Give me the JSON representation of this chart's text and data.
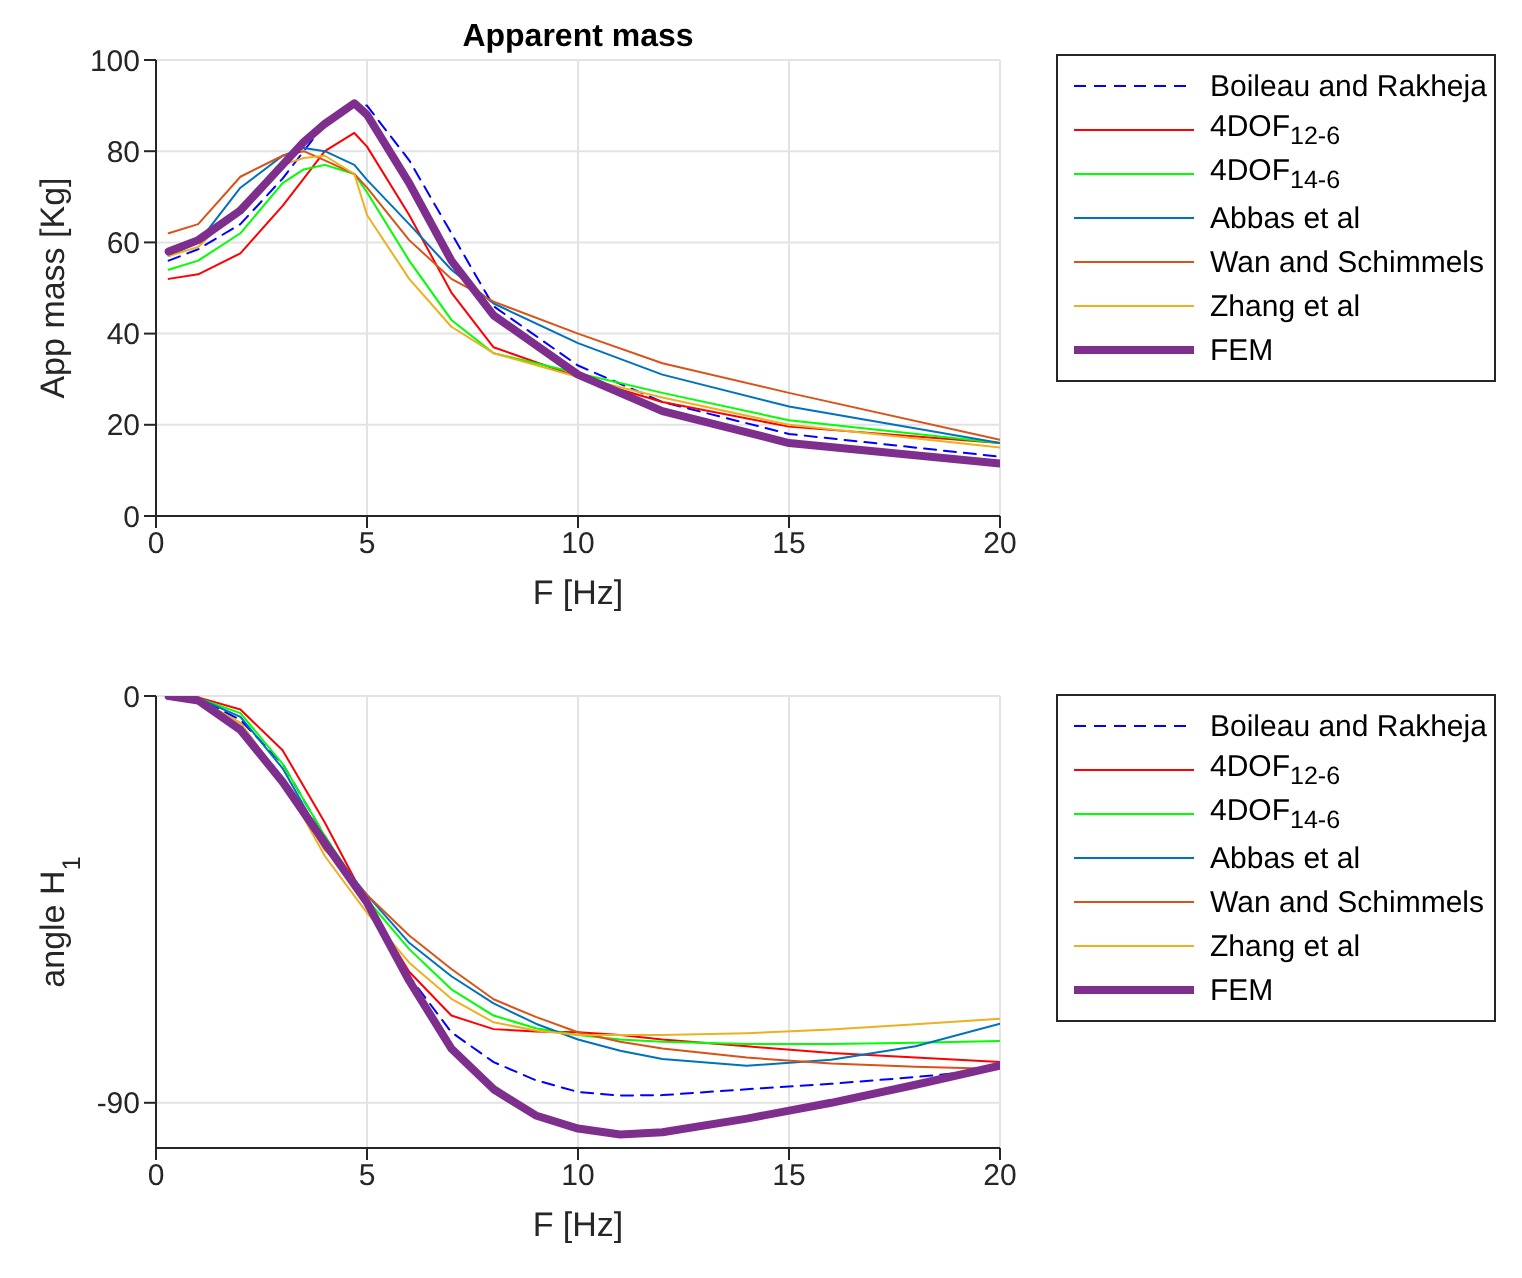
{
  "chart_data": [
    {
      "type": "line",
      "title": "Apparent mass",
      "xlabel": "F [Hz]",
      "ylabel": "App mass [Kg]",
      "xlim": [
        0,
        20
      ],
      "xticks": [
        0,
        5,
        10,
        15,
        20
      ],
      "ylim": [
        0,
        100
      ],
      "yticks": [
        0,
        20,
        40,
        60,
        80,
        100
      ],
      "grid": true,
      "legend": "right",
      "x": [
        0.3,
        1,
        2,
        3,
        3.5,
        4,
        4.7,
        5,
        6,
        7,
        8,
        10,
        12,
        15,
        20
      ],
      "series": [
        {
          "name": "Boileau and Rakheja",
          "color": "#0000ff",
          "line_style": "dashed",
          "values": [
            56,
            58.5,
            64,
            74,
            80,
            86,
            90.5,
            90,
            78,
            62,
            46,
            33,
            25,
            18,
            13
          ]
        },
        {
          "name": "4DOF$_{12-6}$",
          "color": "#ff0000",
          "values": [
            52,
            53,
            57.6,
            68,
            74,
            80,
            84,
            81,
            66,
            49,
            37,
            30.5,
            25,
            19.6,
            16
          ]
        },
        {
          "name": "4DOF$_{14-6}$",
          "color": "#00ff00",
          "values": [
            54,
            56,
            62,
            73,
            76,
            77,
            75,
            71,
            56,
            43,
            35.7,
            31.3,
            27,
            21,
            16
          ]
        },
        {
          "name": "Abbas et al",
          "color": "#0072bd",
          "values": [
            57,
            60,
            72,
            79,
            80.7,
            80,
            77,
            73.7,
            64,
            54,
            46.6,
            37.9,
            31,
            24,
            16
          ]
        },
        {
          "name": "Wan and Schimmels",
          "color": "#d95319",
          "values": [
            62,
            64,
            74.4,
            79,
            80,
            78,
            75,
            72,
            60.5,
            52,
            47,
            40,
            33.5,
            27,
            16.7
          ]
        },
        {
          "name": "Zhang et al",
          "color": "#edb120",
          "values": [
            57,
            59,
            68,
            77,
            78.5,
            79,
            75,
            66,
            52,
            41.5,
            35.7,
            30.5,
            26,
            20,
            15
          ]
        },
        {
          "name": "FEM",
          "color": "#7e2f8e",
          "values": [
            58,
            60.5,
            67,
            77,
            82,
            86,
            90.5,
            88,
            73,
            56,
            44,
            31,
            23,
            16,
            11.5
          ]
        }
      ]
    },
    {
      "type": "line",
      "xlabel": "F [Hz]",
      "ylabel": "angle H$_{1}$",
      "xlim": [
        0,
        20
      ],
      "xticks": [
        0,
        5,
        10,
        15,
        20
      ],
      "ylim": [
        -100,
        0
      ],
      "yticks": [
        -90,
        0
      ],
      "grid": true,
      "legend": "right",
      "x": [
        0.3,
        1,
        2,
        3,
        4,
        5,
        6,
        7,
        8,
        9,
        10,
        11,
        12,
        14,
        16,
        18,
        20
      ],
      "series": [
        {
          "name": "Boileau and Rakheja",
          "color": "#0000ff",
          "line_style": "dashed",
          "values": [
            0,
            -0.5,
            -5.3,
            -15,
            -31,
            -45.7,
            -62,
            -74.4,
            -81,
            -85,
            -87.6,
            -88.4,
            -88.3,
            -87,
            -85.8,
            -84.3,
            -82.5
          ]
        },
        {
          "name": "4DOF$_{12-6}$",
          "color": "#ff0000",
          "values": [
            0,
            -0.3,
            -3,
            -12,
            -28,
            -45.7,
            -61,
            -70.7,
            -73.7,
            -74.2,
            -74.4,
            -75,
            -76,
            -77.5,
            -79,
            -80,
            -81
          ]
        },
        {
          "name": "4DOF$_{14-6}$",
          "color": "#00ff00",
          "values": [
            0,
            -0.5,
            -3.8,
            -15,
            -31,
            -45,
            -56,
            -64.9,
            -70.7,
            -73.5,
            -75,
            -76,
            -76.5,
            -77,
            -77,
            -76.7,
            -76.3
          ]
        },
        {
          "name": "Abbas et al",
          "color": "#0072bd",
          "values": [
            0,
            -0.5,
            -4.6,
            -16,
            -32.5,
            -44,
            -54.6,
            -62,
            -68,
            -72.5,
            -76,
            -78.5,
            -80.3,
            -81.8,
            -80.5,
            -77.5,
            -72.5
          ]
        },
        {
          "name": "Wan and Schimmels",
          "color": "#d95319",
          "values": [
            0,
            -0.7,
            -6,
            -18.5,
            -34,
            -44,
            -53,
            -60.4,
            -67.1,
            -71,
            -74.4,
            -76.5,
            -78,
            -80,
            -81.3,
            -82,
            -82.5
          ]
        },
        {
          "name": "Zhang et al",
          "color": "#edb120",
          "values": [
            0,
            -0.7,
            -6,
            -18.5,
            -35.4,
            -48,
            -59,
            -67,
            -72.2,
            -74,
            -75,
            -75,
            -75,
            -74.6,
            -73.8,
            -72.6,
            -71.4
          ]
        },
        {
          "name": "FEM",
          "color": "#7e2f8e",
          "values": [
            0,
            -1,
            -7.5,
            -19,
            -32.5,
            -45.7,
            -63,
            -78,
            -87,
            -92.8,
            -95.7,
            -97,
            -96.5,
            -93.5,
            -90,
            -86,
            -81.8
          ]
        }
      ]
    }
  ]
}
